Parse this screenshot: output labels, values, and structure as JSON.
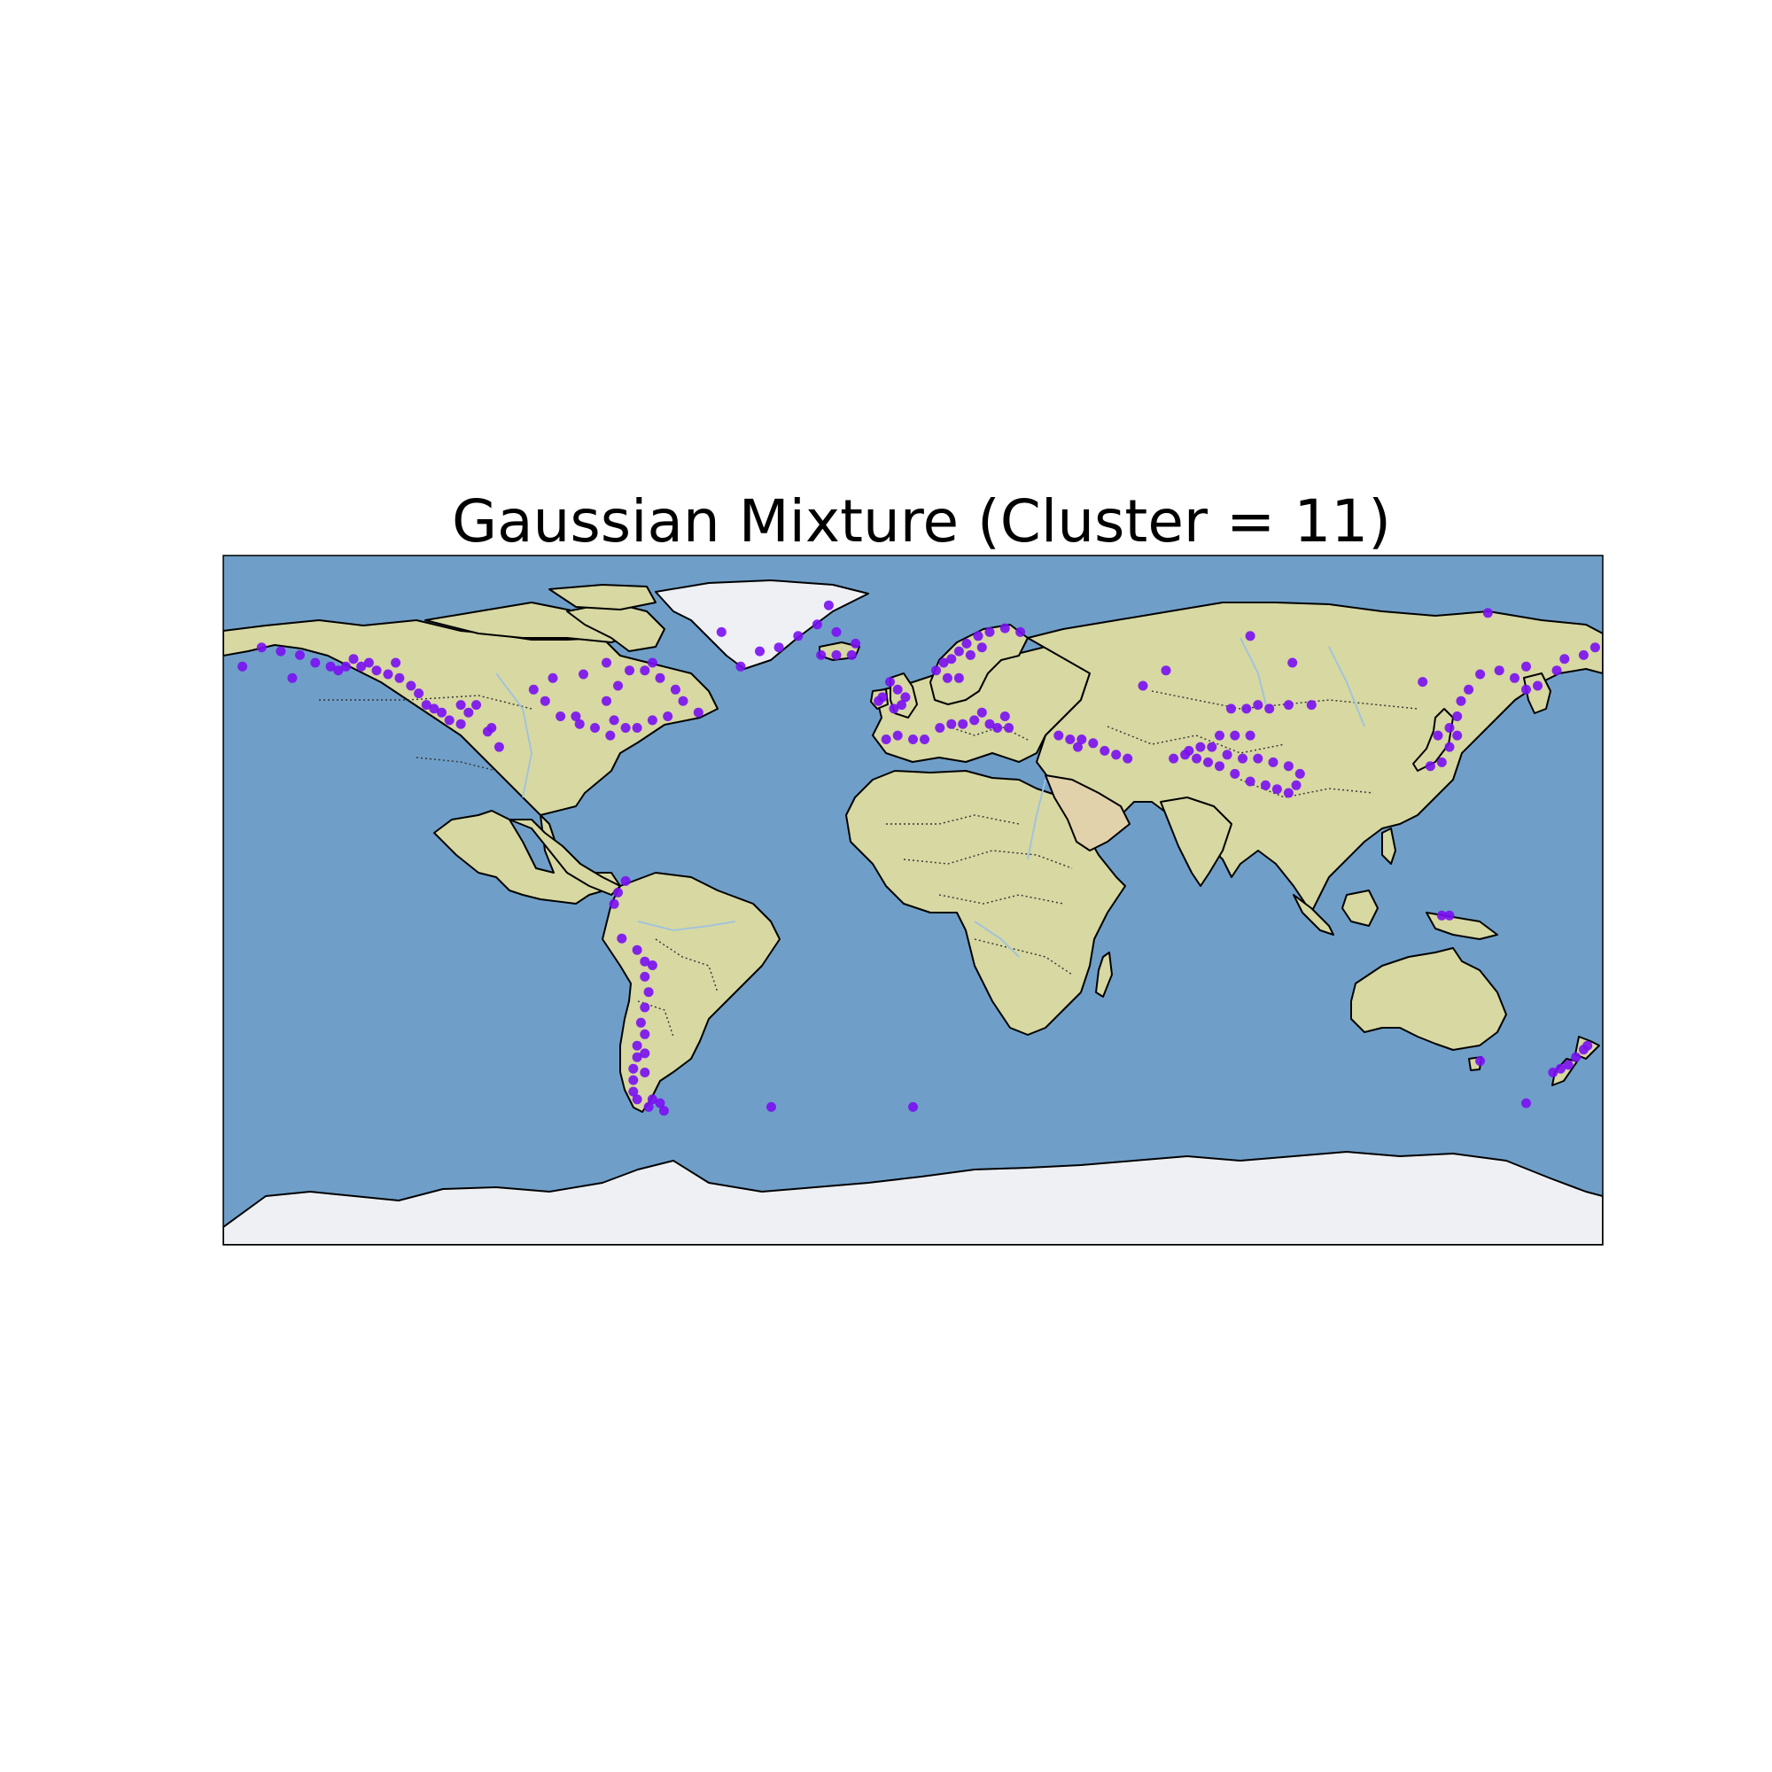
{
  "figure": {
    "title": "Gaussian Mixture (Cluster = 11)"
  },
  "map": {
    "projection": "PlateCarree",
    "extent": {
      "lon": [
        -180,
        180
      ],
      "lat": [
        -90,
        90
      ]
    },
    "background": "stock image (ocean, land relief, ice)",
    "features": [
      "coastlines",
      "country borders (dotted)",
      "rivers"
    ]
  },
  "colors": {
    "ocean": "#6f9fc8",
    "land": "#d7d8a2",
    "land_green": "#b9c98c",
    "desert": "#e2d2ac",
    "ice": "#eef0f4",
    "coastline": "#000000",
    "borders": "#333333",
    "rivers": "#9ec2e0",
    "points": "#7a0ff2"
  },
  "chart_data": {
    "type": "scatter",
    "title": "Gaussian Mixture (Cluster = 11)",
    "xlabel": "",
    "ylabel": "",
    "xlim": [
      -180,
      180
    ],
    "ylim": [
      -90,
      90
    ],
    "grid": false,
    "legend": "none",
    "series": [
      {
        "cluster": 11,
        "color": "#7a0ff2",
        "points": [
          [
            -170,
            66
          ],
          [
            -165,
            65
          ],
          [
            -160,
            64
          ],
          [
            -156,
            62
          ],
          [
            -152,
            61
          ],
          [
            -148,
            61
          ],
          [
            -144,
            61
          ],
          [
            -140,
            60
          ],
          [
            -137,
            59
          ],
          [
            -134,
            58
          ],
          [
            -131,
            56
          ],
          [
            -129,
            54
          ],
          [
            -127,
            51
          ],
          [
            -125,
            50
          ],
          [
            -123,
            49
          ],
          [
            -121,
            47
          ],
          [
            -118,
            51
          ],
          [
            -116,
            49
          ],
          [
            -114,
            51
          ],
          [
            -118,
            46
          ],
          [
            -111,
            44
          ],
          [
            -108,
            40
          ],
          [
            -110,
            45
          ],
          [
            -150,
            60
          ],
          [
            -146,
            63
          ],
          [
            -142,
            62
          ],
          [
            -135,
            62
          ],
          [
            -162,
            58
          ],
          [
            -175,
            61
          ],
          [
            -80,
            52
          ],
          [
            -77,
            56
          ],
          [
            -74,
            60
          ],
          [
            -70,
            60
          ],
          [
            -66,
            58
          ],
          [
            -62,
            55
          ],
          [
            -60,
            52
          ],
          [
            -56,
            49
          ],
          [
            -64,
            48
          ],
          [
            -68,
            47
          ],
          [
            -72,
            45
          ],
          [
            -75,
            45
          ],
          [
            -79,
            43
          ],
          [
            -83,
            45
          ],
          [
            -87,
            46
          ],
          [
            -92,
            48
          ],
          [
            -96,
            52
          ],
          [
            -99,
            55
          ],
          [
            -94,
            58
          ],
          [
            -86,
            59
          ],
          [
            -80,
            62
          ],
          [
            -68,
            62
          ],
          [
            -78,
            47
          ],
          [
            -88,
            48
          ],
          [
            -50,
            70
          ],
          [
            -45,
            61
          ],
          [
            -40,
            65
          ],
          [
            -30,
            69
          ],
          [
            -25,
            72
          ],
          [
            -20,
            70
          ],
          [
            -15,
            67
          ],
          [
            -35,
            66
          ],
          [
            -22,
            77
          ],
          [
            -24,
            64
          ],
          [
            -20,
            64
          ],
          [
            -16,
            64
          ],
          [
            -6,
            57
          ],
          [
            -4,
            55
          ],
          [
            -2,
            53
          ],
          [
            -3,
            51
          ],
          [
            -8,
            53
          ],
          [
            -9,
            52
          ],
          [
            -5,
            50
          ],
          [
            6,
            60
          ],
          [
            8,
            62
          ],
          [
            10,
            63
          ],
          [
            12,
            65
          ],
          [
            14,
            67
          ],
          [
            17,
            69
          ],
          [
            20,
            70
          ],
          [
            24,
            71
          ],
          [
            28,
            70
          ],
          [
            15,
            64
          ],
          [
            18,
            66
          ],
          [
            12,
            58
          ],
          [
            9,
            58
          ],
          [
            -4,
            43
          ],
          [
            0,
            42
          ],
          [
            3,
            42
          ],
          [
            7,
            45
          ],
          [
            10,
            46
          ],
          [
            13,
            46
          ],
          [
            16,
            47
          ],
          [
            20,
            46
          ],
          [
            22,
            45
          ],
          [
            25,
            45
          ],
          [
            -7,
            42
          ],
          [
            18,
            49
          ],
          [
            24,
            48
          ],
          [
            38,
            43
          ],
          [
            41,
            42
          ],
          [
            44,
            42
          ],
          [
            47,
            41
          ],
          [
            50,
            39
          ],
          [
            53,
            38
          ],
          [
            56,
            37
          ],
          [
            43,
            40
          ],
          [
            68,
            37
          ],
          [
            71,
            38
          ],
          [
            74,
            37
          ],
          [
            77,
            36
          ],
          [
            80,
            35
          ],
          [
            84,
            33
          ],
          [
            88,
            31
          ],
          [
            92,
            30
          ],
          [
            95,
            29
          ],
          [
            98,
            28
          ],
          [
            100,
            30
          ],
          [
            101,
            33
          ],
          [
            98,
            35
          ],
          [
            94,
            36
          ],
          [
            90,
            37
          ],
          [
            86,
            37
          ],
          [
            82,
            38
          ],
          [
            78,
            40
          ],
          [
            75,
            40
          ],
          [
            72,
            39
          ],
          [
            80,
            43
          ],
          [
            84,
            43
          ],
          [
            88,
            43
          ],
          [
            83,
            50
          ],
          [
            87,
            50
          ],
          [
            90,
            51
          ],
          [
            93,
            50
          ],
          [
            98,
            51
          ],
          [
            104,
            51
          ],
          [
            60,
            56
          ],
          [
            66,
            60
          ],
          [
            88,
            69
          ],
          [
            99,
            62
          ],
          [
            150,
            75
          ],
          [
            140,
            45
          ],
          [
            142,
            48
          ],
          [
            143,
            52
          ],
          [
            145,
            55
          ],
          [
            148,
            59
          ],
          [
            153,
            60
          ],
          [
            157,
            58
          ],
          [
            160,
            55
          ],
          [
            163,
            56
          ],
          [
            168,
            60
          ],
          [
            175,
            64
          ],
          [
            178,
            66
          ],
          [
            137,
            43
          ],
          [
            135,
            35
          ],
          [
            138,
            36
          ],
          [
            140,
            40
          ],
          [
            142,
            43
          ],
          [
            133,
            57
          ],
          [
            160,
            61
          ],
          [
            170,
            63
          ],
          [
            -75,
            5
          ],
          [
            -77,
            2
          ],
          [
            -78,
            -1
          ],
          [
            -76,
            -10
          ],
          [
            -72,
            -13
          ],
          [
            -70,
            -16
          ],
          [
            -68,
            -17
          ],
          [
            -70,
            -20
          ],
          [
            -69,
            -24
          ],
          [
            -70,
            -28
          ],
          [
            -71,
            -32
          ],
          [
            -70,
            -35
          ],
          [
            -72,
            -38
          ],
          [
            -72,
            -41
          ],
          [
            -73,
            -44
          ],
          [
            -73,
            -47
          ],
          [
            -73,
            -50
          ],
          [
            -72,
            -52
          ],
          [
            -69,
            -54
          ],
          [
            -65,
            -55
          ],
          [
            -70,
            -45
          ],
          [
            -70,
            -40
          ],
          [
            -68,
            -52
          ],
          [
            -66,
            -53
          ],
          [
            -37,
            -54
          ],
          [
            0,
            -54
          ],
          [
            138,
            -4
          ],
          [
            140,
            -4
          ],
          [
            148,
            -42
          ],
          [
            167,
            -45
          ],
          [
            169,
            -44
          ],
          [
            171,
            -43
          ],
          [
            173,
            -41
          ],
          [
            175,
            -39
          ],
          [
            176,
            -38
          ],
          [
            160,
            -53
          ]
        ]
      }
    ]
  }
}
